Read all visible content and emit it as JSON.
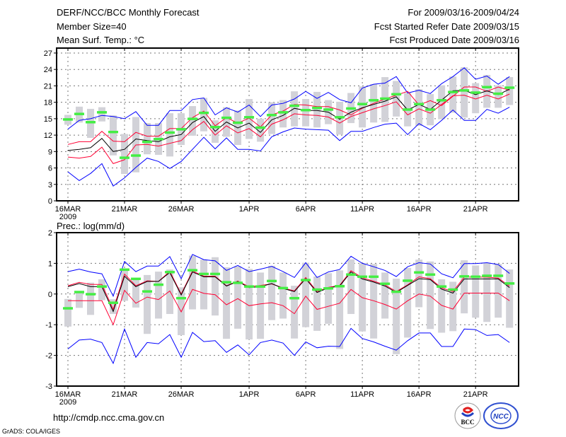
{
  "header": {
    "title": "DERF/NCC/BCC Monthly Forecast",
    "member_size": "Member Size=40",
    "variable": "Mean Surf. Temp.: °C",
    "period": "For 2009/03/16-2009/04/24",
    "started": "Fcst Started Refer Date 2009/03/15",
    "produced": "Fcst Produced Date 2009/03/16"
  },
  "footer": {
    "url": "http://cmdp.ncc.cma.gov.cn",
    "credit": "GrADS: COLA/IGES",
    "logo_bcc": "BCC",
    "logo_ncc": "NCC"
  },
  "colors": {
    "max_min": "#0000ff",
    "quartile": "#ff0033",
    "mean": "#000000",
    "range_bar": "#d2d2d8",
    "obs": "#44ee44"
  },
  "chart_data": [
    {
      "type": "line",
      "title": "Mean Surf. Temp.: °C",
      "xlabel": "",
      "ylabel": "",
      "x_tick_days": [
        0,
        5,
        10,
        16,
        21,
        26,
        31,
        36
      ],
      "x_tick_labels": [
        "16MAR",
        "21MAR",
        "26MAR",
        "1APR",
        "6APR",
        "11APR",
        "16APR",
        "21APR"
      ],
      "x_year_label": "2009",
      "xlim": [
        -1,
        39.8
      ],
      "ylim": [
        0,
        27.9
      ],
      "yticks": [
        0,
        3,
        6,
        9,
        12,
        15,
        18,
        21,
        24,
        27
      ],
      "grid": true,
      "series": [
        {
          "name": "max",
          "color_key": "max_min",
          "values": [
            13.1,
            14.7,
            15.0,
            15.6,
            15.4,
            15.0,
            16.3,
            13.8,
            13.8,
            16.5,
            16.5,
            18.5,
            18.8,
            15.7,
            17.0,
            16.2,
            17.5,
            15.4,
            17.5,
            17.8,
            18.6,
            20.0,
            18.7,
            19.8,
            18.5,
            17.9,
            20.6,
            21.3,
            21.5,
            22.7,
            19.7,
            20.2,
            19.6,
            21.4,
            22.7,
            24.3,
            22.2,
            22.8,
            21.3,
            22.7
          ]
        },
        {
          "name": "upper",
          "color_key": "quartile",
          "values": [
            10.3,
            10.8,
            10.8,
            12.7,
            10.9,
            10.8,
            12.5,
            11.8,
            11.8,
            13.2,
            13.2,
            15.2,
            16.4,
            13.7,
            15.2,
            14.2,
            15.1,
            13.5,
            15.7,
            16.4,
            17.6,
            17.5,
            17.2,
            17.2,
            16.6,
            15.7,
            16.9,
            17.8,
            18.6,
            19.3,
            20.0,
            17.5,
            18.3,
            17.4,
            19.1,
            20.8,
            20.8,
            20.0,
            20.8,
            20.2
          ]
        },
        {
          "name": "mean",
          "color_key": "mean",
          "values": [
            9.2,
            9.4,
            9.7,
            11.4,
            9.0,
            9.4,
            11.3,
            11.0,
            10.8,
            11.7,
            12.1,
            14.3,
            15.4,
            12.7,
            14.4,
            13.3,
            14.2,
            12.5,
            14.8,
            15.6,
            16.9,
            16.5,
            16.5,
            16.2,
            14.9,
            16.2,
            17.0,
            17.6,
            18.2,
            19.0,
            16.6,
            17.6,
            16.7,
            18.4,
            20.1,
            20.2,
            19.4,
            20.1,
            19.4,
            20.4
          ]
        },
        {
          "name": "lower",
          "color_key": "quartile",
          "values": [
            8.0,
            7.8,
            8.1,
            9.8,
            6.8,
            7.5,
            10.2,
            10.3,
            10.0,
            10.5,
            11.0,
            13.0,
            14.5,
            12.0,
            13.7,
            12.4,
            13.2,
            11.7,
            14.0,
            14.8,
            15.9,
            15.7,
            15.6,
            15.3,
            14.2,
            15.4,
            16.1,
            16.8,
            17.4,
            18.1,
            15.7,
            16.8,
            16.0,
            17.6,
            19.2,
            19.3,
            18.6,
            19.3,
            18.6,
            19.5
          ]
        },
        {
          "name": "min",
          "color_key": "max_min",
          "values": [
            5.3,
            3.7,
            5.0,
            6.8,
            2.7,
            4.2,
            6.1,
            7.8,
            7.2,
            5.9,
            7.2,
            9.4,
            11.6,
            9.5,
            11.5,
            9.4,
            9.4,
            9.1,
            11.7,
            12.6,
            13.3,
            13.1,
            13.0,
            12.9,
            11.0,
            12.7,
            12.7,
            13.4,
            14.0,
            14.2,
            12.1,
            14.1,
            13.0,
            14.7,
            16.6,
            14.7,
            14.7,
            16.7,
            16.0,
            17.1
          ]
        }
      ],
      "range_bars": {
        "low": [
          13.9,
          14.3,
          11.5,
          14.5,
          8.3,
          4.9,
          5.2,
          8.5,
          8.4,
          8.1,
          10.2,
          11.9,
          12.7,
          10.6,
          11.7,
          10.2,
          11.3,
          10.8,
          12.2,
          13.4,
          13.6,
          13.6,
          13.4,
          14.0,
          12.1,
          14.2,
          13.4,
          14.3,
          14.4,
          15.4,
          13.6,
          13.7,
          13.8,
          14.9,
          16.1,
          15.2,
          16.0,
          17.0,
          17.0,
          17.5
        ],
        "high": [
          15.7,
          17.2,
          16.8,
          17.1,
          15.6,
          12.2,
          15.3,
          14.2,
          14.2,
          16.0,
          16.0,
          17.3,
          18.8,
          14.7,
          17.1,
          16.5,
          18.6,
          15.0,
          18.0,
          18.4,
          20.0,
          18.6,
          19.9,
          18.4,
          18.1,
          19.7,
          20.9,
          21.3,
          22.6,
          21.9,
          19.7,
          20.4,
          19.5,
          21.1,
          22.7,
          24.4,
          21.5,
          23.0,
          21.1,
          22.6
        ]
      },
      "observed": [
        14.9,
        15.9,
        14.4,
        16.2,
        12.6,
        7.9,
        8.3,
        10.8,
        11.3,
        12.5,
        13.1,
        15.0,
        16.1,
        13.5,
        15.2,
        14.3,
        15.3,
        13.4,
        15.7,
        16.2,
        17.4,
        16.6,
        17.0,
        16.7,
        15.3,
        16.9,
        17.7,
        18.4,
        18.7,
        19.5,
        16.7,
        17.7,
        16.7,
        18.4,
        19.9,
        20.2,
        19.8,
        20.8,
        19.6,
        20.7
      ]
    },
    {
      "type": "line",
      "title": "Prec.: log(mm/d)",
      "xlabel": "",
      "ylabel": "",
      "x_tick_days": [
        0,
        5,
        10,
        16,
        21,
        26,
        31,
        36
      ],
      "x_tick_labels": [
        "16MAR",
        "21MAR",
        "26MAR",
        "1APR",
        "6APR",
        "11APR",
        "16APR",
        "21APR"
      ],
      "x_year_label": "2009",
      "xlim": [
        -1,
        39.8
      ],
      "ylim": [
        -3,
        2
      ],
      "yticks": [
        -3,
        -2,
        -1,
        0,
        1,
        2
      ],
      "grid": true,
      "series": [
        {
          "name": "max",
          "color_key": "max_min",
          "values": [
            0.73,
            0.81,
            0.72,
            0.66,
            -0.07,
            1.06,
            0.73,
            0.91,
            0.91,
            1.22,
            0.5,
            1.29,
            1.12,
            1.08,
            0.77,
            0.93,
            0.73,
            0.81,
            0.9,
            0.73,
            0.54,
            1.02,
            0.54,
            0.72,
            0.8,
            1.23,
            1.0,
            0.89,
            0.77,
            0.57,
            0.89,
            1.02,
            0.98,
            0.66,
            0.53,
            0.99,
            0.99,
            1.02,
            0.96,
            0.67
          ]
        },
        {
          "name": "upper",
          "color_key": "quartile",
          "values": [
            0.27,
            0.38,
            0.31,
            0.31,
            -0.5,
            0.65,
            0.27,
            0.43,
            0.41,
            0.74,
            0.0,
            0.75,
            0.58,
            0.58,
            0.27,
            0.42,
            0.24,
            0.28,
            0.33,
            0.2,
            0.1,
            0.54,
            0.08,
            0.22,
            0.28,
            0.76,
            0.53,
            0.42,
            0.3,
            0.08,
            0.3,
            0.56,
            0.5,
            0.2,
            0.08,
            0.55,
            0.55,
            0.55,
            0.52,
            0.26
          ]
        },
        {
          "name": "mean",
          "color_key": "mean",
          "values": [
            0.24,
            0.34,
            0.24,
            0.24,
            -0.57,
            0.58,
            0.24,
            0.41,
            0.41,
            0.7,
            -0.03,
            0.72,
            0.56,
            0.56,
            0.26,
            0.41,
            0.21,
            0.24,
            0.34,
            0.18,
            0.08,
            0.5,
            0.05,
            0.2,
            0.26,
            0.72,
            0.49,
            0.39,
            0.26,
            0.05,
            0.28,
            0.5,
            0.47,
            0.16,
            0.03,
            0.49,
            0.49,
            0.49,
            0.49,
            0.21
          ]
        },
        {
          "name": "lower",
          "color_key": "quartile",
          "values": [
            -0.22,
            -0.22,
            -0.22,
            -0.22,
            -1.0,
            0.12,
            -0.3,
            -0.1,
            -0.18,
            0.1,
            -0.58,
            0.15,
            0.02,
            -0.02,
            -0.35,
            -0.15,
            -0.38,
            -0.32,
            -0.28,
            -0.38,
            -0.64,
            -0.07,
            -0.5,
            -0.4,
            -0.3,
            0.15,
            -0.12,
            -0.22,
            -0.34,
            -0.49,
            -0.22,
            0.0,
            -0.07,
            -0.37,
            -0.49,
            0.03,
            0.03,
            0.03,
            0.03,
            -0.22
          ]
        },
        {
          "name": "min",
          "color_key": "max_min",
          "values": [
            -1.79,
            -1.5,
            -1.47,
            -1.58,
            -2.26,
            -1.14,
            -2.06,
            -1.58,
            -1.62,
            -1.32,
            -2.06,
            -1.25,
            -1.55,
            -1.52,
            -1.9,
            -1.66,
            -1.98,
            -1.58,
            -1.5,
            -1.6,
            -2.0,
            -1.56,
            -1.75,
            -1.7,
            -1.71,
            -1.12,
            -1.45,
            -1.56,
            -1.7,
            -1.83,
            -1.52,
            -1.27,
            -1.27,
            -1.71,
            -1.71,
            -1.14,
            -1.16,
            -1.35,
            -1.32,
            -1.58
          ]
        }
      ],
      "range_bars": {
        "low": [
          -1.06,
          -0.45,
          -0.68,
          -0.2,
          -0.65,
          -0.22,
          -0.44,
          -1.3,
          -0.8,
          -0.65,
          -1.34,
          -0.5,
          -0.5,
          -0.7,
          -1.46,
          -1.13,
          -1.48,
          -1.46,
          -0.85,
          -0.8,
          -1.45,
          -1.08,
          -1.2,
          -0.97,
          -1.79,
          -0.65,
          -1.22,
          -1.45,
          -0.8,
          -1.96,
          -1.42,
          -0.43,
          -1.14,
          -1.26,
          -1.21,
          -0.63,
          -0.77,
          -0.91,
          -0.77,
          -1.1
        ],
        "high": [
          -0.16,
          0.09,
          0.37,
          0.48,
          -0.17,
          0.8,
          0.52,
          0.62,
          0.73,
          0.8,
          0.22,
          1.25,
          1.12,
          1.2,
          0.87,
          0.9,
          0.82,
          0.7,
          0.92,
          0.7,
          0.27,
          1.02,
          0.57,
          0.68,
          0.77,
          1.13,
          1.0,
          0.98,
          0.7,
          0.5,
          0.85,
          1.12,
          1.06,
          0.48,
          0.4,
          1.1,
          0.93,
          1.02,
          0.98,
          0.8
        ]
      },
      "observed": [
        -0.46,
        0.07,
        0.0,
        0.25,
        -0.28,
        0.8,
        0.5,
        0.09,
        0.31,
        0.72,
        -0.13,
        0.78,
        0.66,
        0.66,
        0.39,
        0.37,
        0.25,
        0.25,
        0.43,
        0.2,
        -0.13,
        0.46,
        0.15,
        0.19,
        0.26,
        0.64,
        0.57,
        0.57,
        0.34,
        0.08,
        0.44,
        0.71,
        0.64,
        0.25,
        0.15,
        0.58,
        0.57,
        0.6,
        0.6,
        0.35
      ]
    }
  ]
}
